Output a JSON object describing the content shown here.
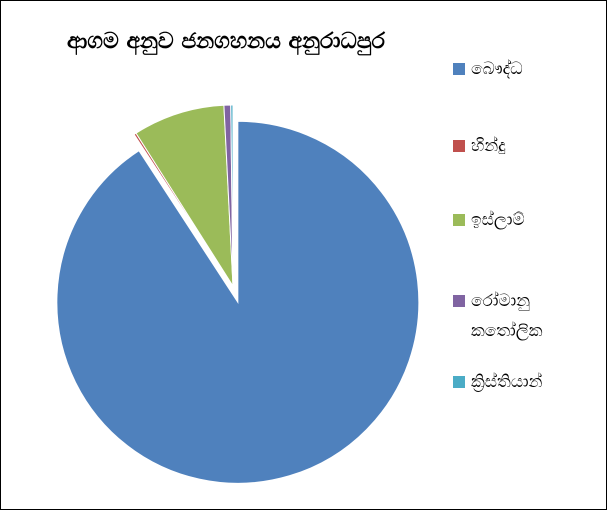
{
  "chart_data": {
    "type": "pie",
    "title": "ආගම අනුව ජනගහනය අනුරාධපුර",
    "categories": [
      "බෞද්ධ",
      "හින්දු",
      "ඉස්ලාම්",
      "රෝමානු කතෝලික",
      "ක්‍රිස්තියාන්"
    ],
    "values": [
      90.8,
      0.2,
      8.2,
      0.6,
      0.2
    ],
    "colors": [
      "#4f81bd",
      "#c0504d",
      "#9bbb59",
      "#8064a2",
      "#4bacc6"
    ],
    "legend": "right"
  }
}
